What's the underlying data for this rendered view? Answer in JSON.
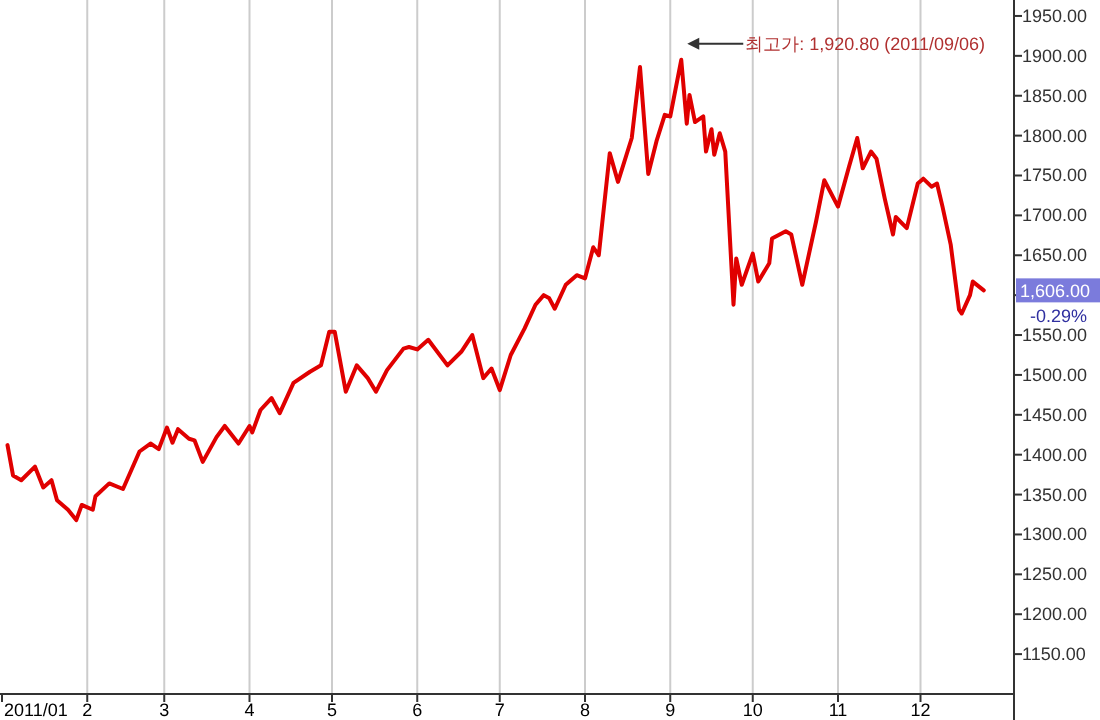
{
  "chart_data": {
    "type": "line",
    "xlim": [
      "2011-01-01",
      "2012-01-04"
    ],
    "xticks": [
      {
        "value": "2011-01-01",
        "label": "2011/01"
      },
      {
        "value": "2011-02-01",
        "label": "2"
      },
      {
        "value": "2011-03-01",
        "label": "3"
      },
      {
        "value": "2011-04-01",
        "label": "4"
      },
      {
        "value": "2011-05-01",
        "label": "5"
      },
      {
        "value": "2011-06-01",
        "label": "6"
      },
      {
        "value": "2011-07-01",
        "label": "7"
      },
      {
        "value": "2011-08-01",
        "label": "8"
      },
      {
        "value": "2011-09-01",
        "label": "9"
      },
      {
        "value": "2011-10-01",
        "label": "10"
      },
      {
        "value": "2011-11-01",
        "label": "11"
      },
      {
        "value": "2011-12-01",
        "label": "12"
      }
    ],
    "ylim": [
      1100,
      1970
    ],
    "yticks": [
      {
        "value": 1150,
        "label": "1150.00"
      },
      {
        "value": 1200,
        "label": "1200.00"
      },
      {
        "value": 1250,
        "label": "1250.00"
      },
      {
        "value": 1300,
        "label": "1300.00"
      },
      {
        "value": 1350,
        "label": "1350.00"
      },
      {
        "value": 1400,
        "label": "1400.00"
      },
      {
        "value": 1450,
        "label": "1450.00"
      },
      {
        "value": 1500,
        "label": "1500.00"
      },
      {
        "value": 1550,
        "label": "1550.00"
      },
      {
        "value": 1600,
        "label": null
      },
      {
        "value": 1650,
        "label": "1650.00"
      },
      {
        "value": 1700,
        "label": "1700.00"
      },
      {
        "value": 1750,
        "label": "1750.00"
      },
      {
        "value": 1800,
        "label": "1800.00"
      },
      {
        "value": 1850,
        "label": "1850.00"
      },
      {
        "value": 1900,
        "label": "1900.00"
      },
      {
        "value": 1950,
        "label": "1950.00"
      }
    ],
    "grid": "x",
    "marker": "none",
    "line_style": "solid",
    "x": [
      "2011-01-03",
      "2011-01-05",
      "2011-01-08",
      "2011-01-13",
      "2011-01-16",
      "2011-01-19",
      "2011-01-21",
      "2011-01-25",
      "2011-01-28",
      "2011-01-30",
      "2011-02-03",
      "2011-02-04",
      "2011-02-09",
      "2011-02-14",
      "2011-02-20",
      "2011-02-24",
      "2011-02-27",
      "2011-03-02",
      "2011-03-04",
      "2011-03-06",
      "2011-03-10",
      "2011-03-12",
      "2011-03-15",
      "2011-03-20",
      "2011-03-23",
      "2011-03-28",
      "2011-04-01",
      "2011-04-02",
      "2011-04-05",
      "2011-04-09",
      "2011-04-12",
      "2011-04-17",
      "2011-04-23",
      "2011-04-27",
      "2011-04-30",
      "2011-05-02",
      "2011-05-06",
      "2011-05-10",
      "2011-05-14",
      "2011-05-17",
      "2011-05-21",
      "2011-05-27",
      "2011-05-29",
      "2011-06-01",
      "2011-06-05",
      "2011-06-12",
      "2011-06-17",
      "2011-06-21",
      "2011-06-25",
      "2011-06-28",
      "2011-07-01",
      "2011-07-05",
      "2011-07-10",
      "2011-07-14",
      "2011-07-17",
      "2011-07-19",
      "2011-07-21",
      "2011-07-25",
      "2011-07-29",
      "2011-08-01",
      "2011-08-04",
      "2011-08-06",
      "2011-08-10",
      "2011-08-13",
      "2011-08-18",
      "2011-08-21",
      "2011-08-24",
      "2011-08-27",
      "2011-08-30",
      "2011-09-01",
      "2011-09-05",
      "2011-09-07",
      "2011-09-08",
      "2011-09-10",
      "2011-09-13",
      "2011-09-14",
      "2011-09-16",
      "2011-09-17",
      "2011-09-19",
      "2011-09-21",
      "2011-09-24",
      "2011-09-25",
      "2011-09-27",
      "2011-10-01",
      "2011-10-03",
      "2011-10-07",
      "2011-10-08",
      "2011-10-13",
      "2011-10-15",
      "2011-10-19",
      "2011-10-24",
      "2011-10-27",
      "2011-11-01",
      "2011-11-05",
      "2011-11-08",
      "2011-11-10",
      "2011-11-13",
      "2011-11-15",
      "2011-11-18",
      "2011-11-21",
      "2011-11-22",
      "2011-11-26",
      "2011-11-30",
      "2011-12-02",
      "2011-12-05",
      "2011-12-07",
      "2011-12-09",
      "2011-12-12",
      "2011-12-15",
      "2011-12-16",
      "2011-12-19",
      "2011-12-20",
      "2011-12-24"
    ],
    "series": [
      {
        "color": "#e00000",
        "values": [
          1412,
          1374,
          1368,
          1385,
          1359,
          1368,
          1343,
          1331,
          1318,
          1337,
          1331,
          1348,
          1364,
          1357,
          1404,
          1414,
          1407,
          1434,
          1415,
          1432,
          1420,
          1418,
          1391,
          1422,
          1436,
          1414,
          1436,
          1428,
          1456,
          1471,
          1452,
          1490,
          1504,
          1512,
          1554,
          1554,
          1479,
          1512,
          1496,
          1479,
          1506,
          1533,
          1535,
          1532,
          1544,
          1512,
          1529,
          1550,
          1496,
          1508,
          1481,
          1525,
          1558,
          1588,
          1600,
          1596,
          1583,
          1613,
          1625,
          1621,
          1660,
          1650,
          1778,
          1742,
          1797,
          1886,
          1752,
          1793,
          1826,
          1824,
          1895,
          1815,
          1851,
          1817,
          1824,
          1780,
          1808,
          1776,
          1803,
          1780,
          1588,
          1646,
          1613,
          1652,
          1617,
          1640,
          1671,
          1680,
          1676,
          1613,
          1692,
          1744,
          1711,
          1761,
          1797,
          1759,
          1780,
          1771,
          1721,
          1676,
          1698,
          1684,
          1740,
          1746,
          1736,
          1740,
          1711,
          1663,
          1582,
          1577,
          1600,
          1617,
          1606
        ]
      }
    ],
    "annotations": [
      "최고가: 1,920.80 (2011/09/06)",
      "1,606.00",
      "-0.29%"
    ]
  }
}
